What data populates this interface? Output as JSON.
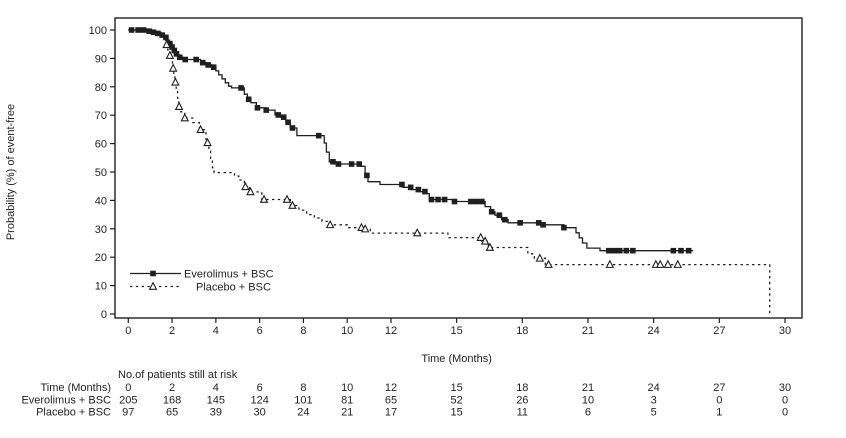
{
  "meta": {
    "ink_color": "#1f1f1f",
    "background_color": "#ffffff"
  },
  "chart_data": {
    "type": "line",
    "subtype": "kaplan-meier-step",
    "title": "",
    "xlabel": "Time (Months)",
    "ylabel": "Probability (%) of event-free",
    "xlim": [
      0,
      30
    ],
    "ylim": [
      0,
      100
    ],
    "grid": "off",
    "legend_position": "inside-lower-left",
    "x_ticks": [
      0,
      2,
      4,
      6,
      8,
      10,
      12,
      15,
      18,
      21,
      24,
      27,
      30
    ],
    "y_ticks": [
      100,
      90,
      80,
      70,
      60,
      50,
      40,
      30,
      20,
      10,
      0
    ],
    "series": [
      {
        "name": "Everolimus + BSC",
        "line": "solid",
        "marker": "filled-square",
        "end_time": 25.8,
        "steps": [
          [
            0,
            100
          ],
          [
            0.85,
            99.6
          ],
          [
            1.1,
            99.2
          ],
          [
            1.3,
            98.8
          ],
          [
            1.5,
            98.2
          ],
          [
            1.65,
            97.4
          ],
          [
            1.8,
            96.4
          ],
          [
            1.88,
            95.2
          ],
          [
            1.96,
            94.0
          ],
          [
            2.05,
            92.8
          ],
          [
            2.14,
            91.6
          ],
          [
            2.3,
            90.4
          ],
          [
            2.5,
            89.6
          ],
          [
            3.3,
            88.5
          ],
          [
            3.6,
            87.7
          ],
          [
            3.85,
            86.9
          ],
          [
            4.0,
            85.6
          ],
          [
            4.13,
            84.2
          ],
          [
            4.28,
            82.8
          ],
          [
            4.43,
            81.4
          ],
          [
            4.58,
            80.2
          ],
          [
            4.72,
            79.6
          ],
          [
            5.3,
            77.4
          ],
          [
            5.44,
            75.6
          ],
          [
            5.6,
            74.4
          ],
          [
            5.85,
            72.6
          ],
          [
            6.25,
            71.8
          ],
          [
            6.7,
            70.1
          ],
          [
            6.95,
            69.3
          ],
          [
            7.2,
            67.5
          ],
          [
            7.4,
            65.5
          ],
          [
            7.7,
            62.8
          ],
          [
            8.95,
            60.2
          ],
          [
            9.05,
            57.0
          ],
          [
            9.18,
            53.6
          ],
          [
            9.5,
            52.8
          ],
          [
            10.6,
            52.0
          ],
          [
            10.82,
            48.8
          ],
          [
            10.95,
            46.6
          ],
          [
            11.5,
            45.6
          ],
          [
            12.55,
            44.6
          ],
          [
            12.95,
            43.8
          ],
          [
            13.3,
            43.1
          ],
          [
            13.6,
            42.4
          ],
          [
            13.75,
            40.3
          ],
          [
            14.9,
            39.6
          ],
          [
            16.3,
            37.8
          ],
          [
            16.55,
            36.0
          ],
          [
            16.75,
            34.8
          ],
          [
            17.05,
            33.2
          ],
          [
            17.35,
            32.1
          ],
          [
            18.9,
            31.4
          ],
          [
            19.9,
            30.4
          ],
          [
            20.45,
            28.6
          ],
          [
            20.6,
            26.8
          ],
          [
            20.75,
            25.0
          ],
          [
            20.95,
            23.2
          ],
          [
            21.55,
            22.3
          ]
        ],
        "censor_times": [
          0.15,
          0.45,
          0.7,
          0.95,
          1.15,
          1.35,
          1.55,
          1.72,
          1.9,
          2.0,
          2.1,
          2.2,
          2.35,
          2.6,
          3.1,
          3.4,
          3.65,
          3.9,
          5.15,
          5.5,
          5.9,
          6.3,
          6.85,
          7.1,
          7.3,
          7.5,
          8.7,
          9.35,
          9.6,
          10.2,
          10.55,
          10.9,
          12.5,
          12.9,
          13.25,
          13.55,
          13.85,
          14.15,
          14.45,
          14.9,
          15.65,
          15.9,
          16.15,
          16.6,
          16.95,
          17.2,
          17.9,
          18.75,
          18.95,
          19.9,
          21.95,
          22.2,
          22.45,
          22.75,
          23.05,
          24.9,
          25.25,
          25.6
        ]
      },
      {
        "name": "Placebo + BSC",
        "line": "dotted",
        "marker": "open-triangle",
        "end_time": 29.3,
        "steps": [
          [
            0,
            100
          ],
          [
            1.2,
            99.2
          ],
          [
            1.5,
            98.0
          ],
          [
            1.63,
            96.5
          ],
          [
            1.72,
            94.8
          ],
          [
            1.8,
            93.0
          ],
          [
            1.88,
            91.0
          ],
          [
            1.96,
            89.0
          ],
          [
            2.02,
            86.5
          ],
          [
            2.08,
            84.0
          ],
          [
            2.13,
            81.6
          ],
          [
            2.19,
            79.0
          ],
          [
            2.25,
            76.0
          ],
          [
            2.31,
            73.0
          ],
          [
            2.4,
            71.2
          ],
          [
            2.58,
            69.0
          ],
          [
            2.95,
            67.4
          ],
          [
            3.25,
            64.9
          ],
          [
            3.55,
            60.3
          ],
          [
            3.68,
            57.5
          ],
          [
            3.76,
            54.5
          ],
          [
            3.84,
            51.5
          ],
          [
            3.92,
            49.8
          ],
          [
            4.85,
            48.6
          ],
          [
            5.05,
            47.2
          ],
          [
            5.3,
            44.8
          ],
          [
            5.55,
            43.0
          ],
          [
            6.1,
            40.3
          ],
          [
            7.4,
            38.2
          ],
          [
            7.8,
            36.6
          ],
          [
            8.15,
            35.0
          ],
          [
            8.5,
            33.8
          ],
          [
            8.85,
            32.6
          ],
          [
            9.2,
            31.4
          ],
          [
            10.0,
            30.4
          ],
          [
            10.7,
            29.9
          ],
          [
            11.05,
            28.5
          ],
          [
            14.6,
            26.9
          ],
          [
            16.15,
            25.6
          ],
          [
            16.45,
            23.4
          ],
          [
            18.25,
            21.2
          ],
          [
            18.55,
            19.6
          ],
          [
            19.05,
            17.4
          ],
          [
            29.3,
            0
          ]
        ],
        "censor_times": [
          1.75,
          1.9,
          2.05,
          2.15,
          2.32,
          2.58,
          3.3,
          3.62,
          5.35,
          5.58,
          6.2,
          7.25,
          7.5,
          9.22,
          10.65,
          10.82,
          13.2,
          16.1,
          16.3,
          16.52,
          18.8,
          19.2,
          22.0,
          24.1,
          24.3,
          24.65,
          25.1
        ]
      }
    ]
  },
  "legend": {
    "items": [
      {
        "label": "Everolimus + BSC",
        "line": "solid",
        "marker": "filled-square"
      },
      {
        "label": "Placebo + BSC",
        "line": "dotted",
        "marker": "open-triangle"
      }
    ]
  },
  "risk_table": {
    "title": "No.of patients still at risk",
    "time_label": "Time (Months)",
    "times": [
      0,
      2,
      4,
      6,
      8,
      10,
      12,
      15,
      18,
      21,
      24,
      27,
      30
    ],
    "rows": [
      {
        "label": "Everolimus + BSC",
        "values": [
          205,
          168,
          145,
          124,
          101,
          81,
          65,
          52,
          26,
          10,
          3,
          0,
          0
        ]
      },
      {
        "label": "Placebo + BSC",
        "values": [
          97,
          65,
          39,
          30,
          24,
          21,
          17,
          15,
          11,
          6,
          5,
          1,
          0
        ]
      }
    ]
  }
}
